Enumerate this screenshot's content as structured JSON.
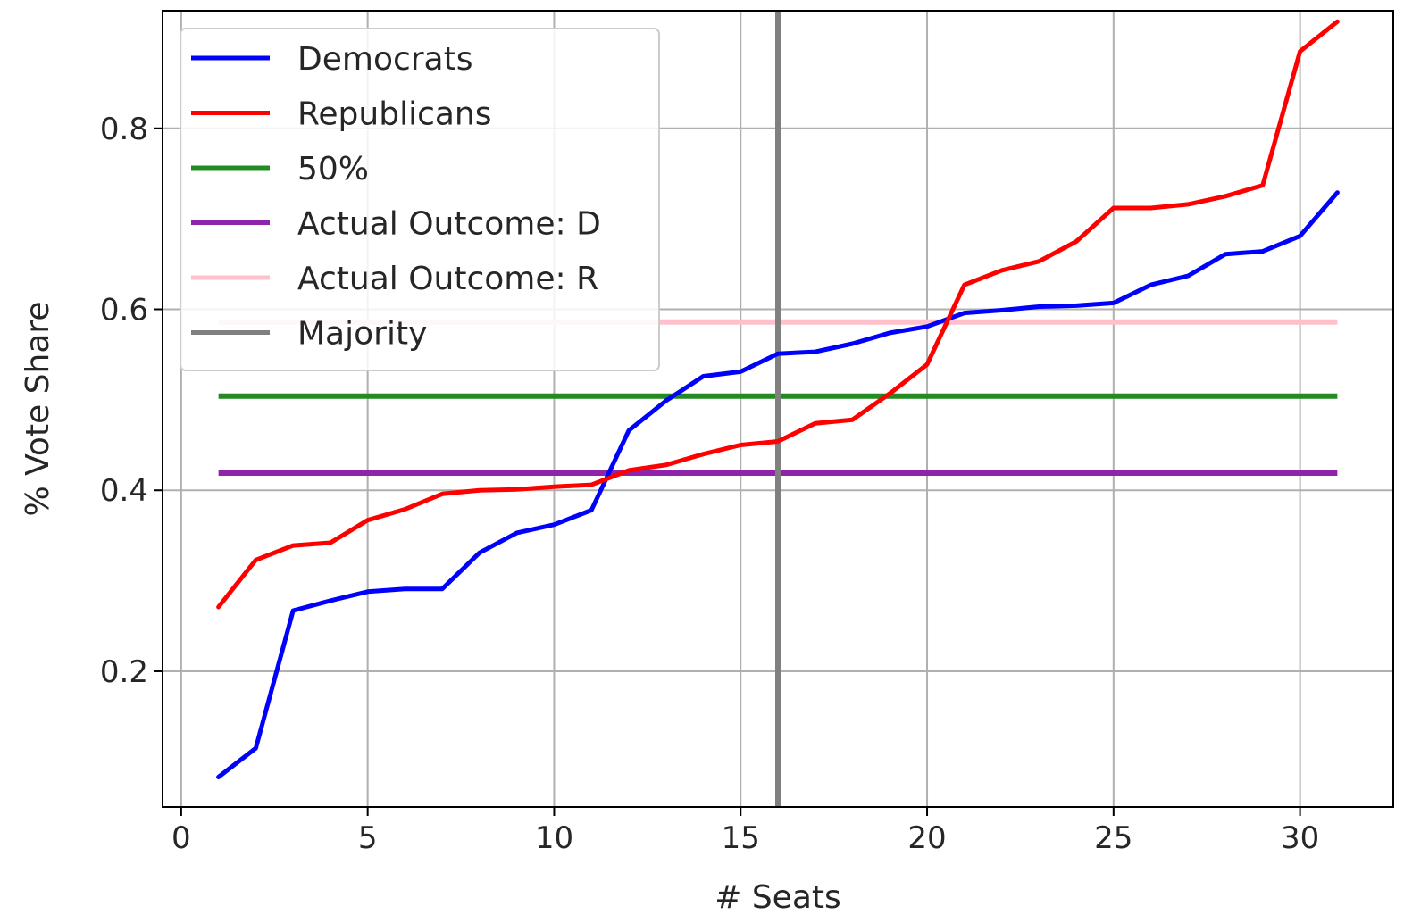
{
  "chart_data": {
    "type": "line",
    "xlabel": "# Seats",
    "ylabel": "% Vote Share",
    "xlim": [
      -0.5,
      32.5
    ],
    "ylim": [
      0.05,
      0.93
    ],
    "xticks": [
      0,
      5,
      10,
      15,
      20,
      25,
      30
    ],
    "yticks": [
      0.2,
      0.4,
      0.6,
      0.8
    ],
    "xtick_labels": [
      "0",
      "5",
      "10",
      "15",
      "20",
      "25",
      "30"
    ],
    "ytick_labels": [
      "0.2",
      "0.4",
      "0.6",
      "0.8"
    ],
    "grid": true,
    "legend_position": "upper-left",
    "x": [
      1,
      2,
      3,
      4,
      5,
      6,
      7,
      8,
      9,
      10,
      11,
      12,
      13,
      14,
      15,
      16,
      17,
      18,
      19,
      20,
      21,
      22,
      23,
      24,
      25,
      26,
      27,
      28,
      29,
      30,
      31
    ],
    "series": [
      {
        "name": "Democrats",
        "color": "#0000ff",
        "values": [
          0.083,
          0.115,
          0.267,
          0.278,
          0.288,
          0.291,
          0.291,
          0.331,
          0.353,
          0.362,
          0.378,
          0.466,
          0.499,
          0.526,
          0.531,
          0.551,
          0.553,
          0.562,
          0.574,
          0.581,
          0.596,
          0.599,
          0.603,
          0.604,
          0.607,
          0.627,
          0.637,
          0.661,
          0.664,
          0.681,
          0.729
        ]
      },
      {
        "name": "Republicans",
        "color": "#ff0000",
        "values": [
          0.271,
          0.323,
          0.339,
          0.342,
          0.367,
          0.379,
          0.396,
          0.4,
          0.401,
          0.404,
          0.406,
          0.422,
          0.428,
          0.44,
          0.45,
          0.454,
          0.474,
          0.478,
          0.507,
          0.539,
          0.627,
          0.643,
          0.653,
          0.675,
          0.712,
          0.712,
          0.716,
          0.725,
          0.737,
          0.885,
          0.918
        ]
      }
    ],
    "reference_lines": [
      {
        "name": "50%",
        "orientation": "horizontal",
        "value": 0.504,
        "color": "#228b22"
      },
      {
        "name": "Actual Outcome: D",
        "orientation": "horizontal",
        "value": 0.419,
        "color": "#8e24aa"
      },
      {
        "name": "Actual Outcome: R",
        "orientation": "horizontal",
        "value": 0.586,
        "color": "#ffc0cb"
      },
      {
        "name": "Majority",
        "orientation": "vertical",
        "value": 16,
        "color": "#808080"
      }
    ]
  }
}
